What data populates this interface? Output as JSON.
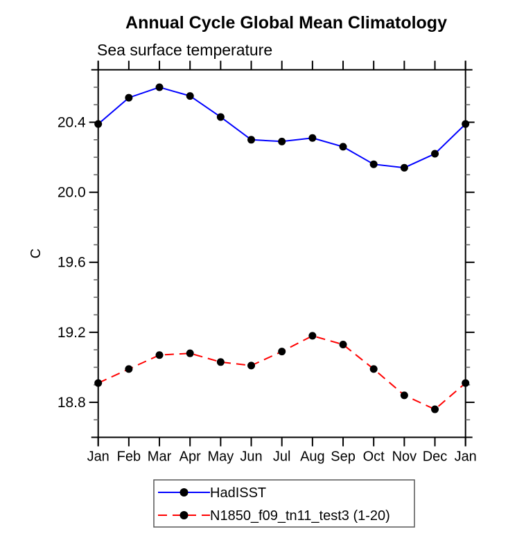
{
  "chart_data": {
    "type": "line",
    "title": "Annual Cycle Global Mean Climatology",
    "subtitle": "Sea surface temperature",
    "ylabel": "C",
    "categories": [
      "Jan",
      "Feb",
      "Mar",
      "Apr",
      "May",
      "Jun",
      "Jul",
      "Aug",
      "Sep",
      "Oct",
      "Nov",
      "Dec",
      "Jan"
    ],
    "series": [
      {
        "name": "HadISST",
        "color": "#0000ff",
        "dash": "solid",
        "marker": "circle",
        "marker_color": "#000000",
        "values": [
          20.39,
          20.54,
          20.6,
          20.55,
          20.43,
          20.3,
          20.29,
          20.31,
          20.26,
          20.16,
          20.14,
          20.22,
          20.39
        ]
      },
      {
        "name": "N1850_f09_tn11_test3 (1-20)",
        "color": "#ff0000",
        "dash": "dashed",
        "marker": "circle",
        "marker_color": "#000000",
        "values": [
          18.91,
          18.99,
          19.07,
          19.08,
          19.03,
          19.01,
          19.09,
          19.18,
          19.13,
          18.99,
          18.84,
          18.76,
          18.91
        ]
      }
    ],
    "ylim": [
      18.6,
      20.7
    ],
    "yticks_major": [
      18.8,
      19.2,
      19.6,
      20.0,
      20.4
    ],
    "ytick_minor_step": 0.1,
    "grid": false,
    "legend_position": "bottom",
    "colors": {
      "axis": "#000000",
      "minor_tick": "#666666",
      "legend_border": "#555555"
    }
  }
}
